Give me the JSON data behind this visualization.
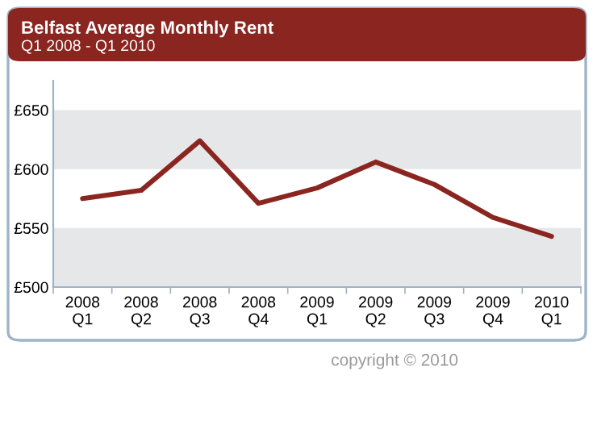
{
  "chart_data": {
    "type": "line",
    "title": "Belfast Average Monthly Rent",
    "subtitle": "Q1 2008 - Q1 2010",
    "categories": [
      "2008\nQ1",
      "2008\nQ2",
      "2008\nQ3",
      "2008\nQ4",
      "2009\nQ1",
      "2009\nQ2",
      "2009\nQ3",
      "2009\nQ4",
      "2010\nQ1"
    ],
    "series": [
      {
        "color": "#8b2520",
        "values": [
          575,
          582,
          624,
          571,
          584,
          606,
          587,
          559,
          543
        ]
      }
    ],
    "ylim": [
      500,
      675
    ],
    "yticks": [
      {
        "value": 500,
        "label": "£500"
      },
      {
        "value": 550,
        "label": "£550"
      },
      {
        "value": 600,
        "label": "£600"
      },
      {
        "value": 650,
        "label": "£650"
      }
    ],
    "bands": [
      {
        "axis": "y",
        "from": 500,
        "to": 550,
        "color": "#e6e7e9"
      },
      {
        "axis": "y",
        "from": 600,
        "to": 650,
        "color": "#e6e7e9"
      }
    ],
    "grid": false,
    "legend": false,
    "marker": "none",
    "line_style": "solid",
    "annotations": [
      "copyright © 2010"
    ]
  }
}
